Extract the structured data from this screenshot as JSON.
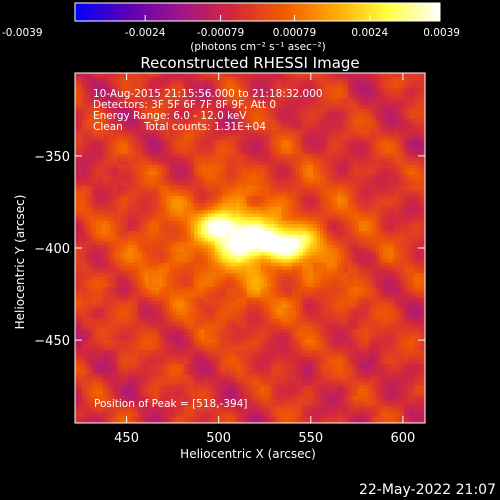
{
  "chart_data": {
    "type": "heatmap",
    "title": "Reconstructed RHESSI Image",
    "xlabel": "Heliocentric X (arcsec)",
    "ylabel": "Heliocentric Y (arcsec)",
    "xlim": [
      422,
      612
    ],
    "ylim": [
      -495,
      -305
    ],
    "x_ticks": [
      450,
      500,
      550,
      600
    ],
    "y_ticks": [
      -350,
      -400,
      -450
    ],
    "colorbar": {
      "ticks": [
        -0.0039,
        -0.0024,
        -0.00079,
        0.00079,
        0.0024,
        0.0039
      ],
      "tick_labels": [
        "-0.0039",
        "-0.0024",
        "-0.00079",
        "0.00079",
        "0.0024",
        "0.0039"
      ],
      "range": [
        -0.0039,
        0.0039
      ],
      "unit_label": "(photons cm⁻² s⁻¹ asec⁻²)"
    },
    "annotations": {
      "time_range": "10-Aug-2015 21:15:56.000 to 21:18:32.000",
      "detectors": "Detectors: 3F 5F 6F 7F 8F 9F, Att 0",
      "energy_range": "Energy Range: 6.0 - 12.0 keV",
      "method": "Clean",
      "total_counts": "Total counts: 1.31E+04",
      "peak_position": "Position of Peak = [518,-394]"
    },
    "peak": {
      "x": 518,
      "y": -394,
      "value": 0.0039
    },
    "source_shape": {
      "components": [
        {
          "x": 518,
          "y": -396,
          "sx": 11,
          "sy": 7,
          "amp": 0.0039
        },
        {
          "x": 502,
          "y": -386,
          "sx": 8,
          "sy": 6,
          "amp": 0.003
        },
        {
          "x": 540,
          "y": -398,
          "sx": 10,
          "sy": 6,
          "amp": 0.0026
        },
        {
          "x": 512,
          "y": -400,
          "sx": 45,
          "sy": 28,
          "amp": 0.0014
        }
      ]
    },
    "colormap_stops": [
      "#0000ff",
      "#5a00b4",
      "#a0148c",
      "#d2283c",
      "#f05a00",
      "#ffaa00",
      "#ffff40",
      "#ffffff"
    ]
  },
  "footer": {
    "date": "22-May-2022 21:07"
  }
}
